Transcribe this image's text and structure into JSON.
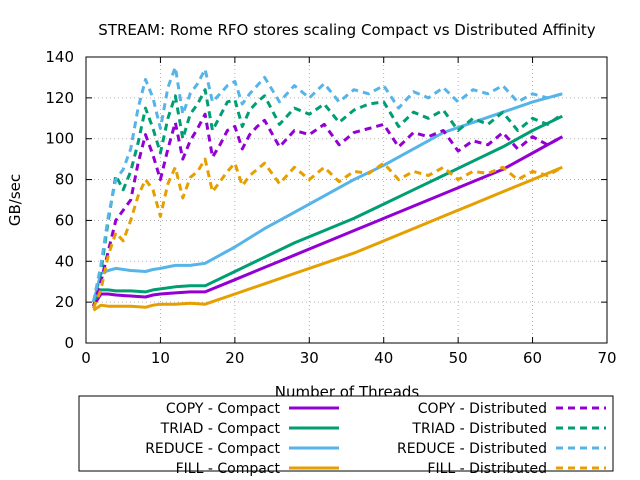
{
  "chart_data": {
    "type": "line",
    "title": "STREAM: Rome RFO stores scaling Compact vs Distributed Affinity",
    "xlabel": "Number of Threads",
    "ylabel": "GB/sec",
    "xlim": [
      0,
      70
    ],
    "ylim": [
      0,
      140
    ],
    "x_ticks": [
      "0",
      "10",
      "20",
      "30",
      "40",
      "50",
      "60",
      "70"
    ],
    "y_ticks": [
      "0",
      "20",
      "40",
      "60",
      "80",
      "100",
      "120",
      "140"
    ],
    "grid": true,
    "legend_position": "bottom",
    "colors": {
      "copy": "#9400d3",
      "triad": "#009e73",
      "reduce": "#56b4e9",
      "fill": "#e69f00"
    },
    "series": [
      {
        "name": "COPY - Compact",
        "color": "#9400d3",
        "dashed": false,
        "x": [
          1,
          2,
          3,
          4,
          6,
          8,
          9,
          10,
          12,
          14,
          16,
          20,
          24,
          28,
          32,
          36,
          40,
          44,
          48,
          52,
          56,
          60,
          64
        ],
        "y": [
          18,
          24,
          24,
          23.5,
          23,
          22.5,
          23.5,
          24,
          24.5,
          25,
          25,
          31,
          37,
          43,
          49,
          55,
          61,
          67,
          73,
          79,
          85,
          93,
          101
        ]
      },
      {
        "name": "TRIAD - Compact",
        "color": "#009e73",
        "dashed": false,
        "x": [
          1,
          2,
          3,
          4,
          6,
          8,
          9,
          10,
          12,
          14,
          16,
          20,
          24,
          28,
          32,
          36,
          40,
          44,
          48,
          52,
          56,
          60,
          64
        ],
        "y": [
          20,
          26,
          26,
          25.5,
          25.5,
          25,
          26,
          26.5,
          27.5,
          28,
          28,
          35,
          42,
          49,
          55,
          61,
          68,
          75,
          82,
          89,
          96,
          104,
          111
        ]
      },
      {
        "name": "REDUCE - Compact",
        "color": "#56b4e9",
        "dashed": false,
        "x": [
          1,
          2,
          3,
          4,
          6,
          8,
          9,
          10,
          12,
          14,
          16,
          20,
          24,
          28,
          32,
          36,
          40,
          44,
          48,
          52,
          56,
          60,
          64
        ],
        "y": [
          20,
          34,
          35.5,
          36.5,
          35.5,
          35,
          36,
          36.5,
          38,
          38,
          39,
          47,
          56,
          64,
          72,
          80,
          87,
          95,
          103,
          108,
          113,
          118,
          122
        ]
      },
      {
        "name": "FILL - Compact",
        "color": "#e69f00",
        "dashed": false,
        "x": [
          1,
          2,
          3,
          4,
          6,
          8,
          9,
          10,
          12,
          14,
          16,
          20,
          24,
          28,
          32,
          36,
          40,
          44,
          48,
          52,
          56,
          60,
          64
        ],
        "y": [
          16,
          18.5,
          18,
          18,
          18,
          17.5,
          18.5,
          19,
          19,
          19.5,
          19,
          24,
          29,
          34,
          39,
          44,
          50,
          56,
          62,
          68,
          74,
          80,
          86
        ]
      },
      {
        "name": "COPY - Distributed",
        "color": "#9400d3",
        "dashed": true,
        "x": [
          1,
          2,
          3,
          4,
          5,
          6,
          7,
          8,
          9,
          10,
          11,
          12,
          13,
          14,
          15,
          16,
          17,
          18,
          19,
          20,
          21,
          22,
          23,
          24,
          26,
          28,
          30,
          32,
          34,
          36,
          38,
          40,
          42,
          44,
          46,
          48,
          50,
          52,
          54,
          56,
          58,
          60,
          62,
          64
        ],
        "y": [
          18,
          30,
          45,
          60,
          65,
          70,
          88,
          102,
          92,
          80,
          95,
          108,
          90,
          99,
          105,
          112,
          91,
          97,
          104,
          106,
          95,
          102,
          106,
          109,
          96,
          104,
          102,
          107,
          97,
          103,
          105,
          107,
          96,
          103,
          101,
          104,
          94,
          99,
          97,
          103,
          95,
          101,
          97,
          101
        ]
      },
      {
        "name": "TRIAD - Distributed",
        "color": "#009e73",
        "dashed": true,
        "x": [
          1,
          2,
          3,
          4,
          5,
          6,
          7,
          8,
          9,
          10,
          11,
          12,
          13,
          14,
          15,
          16,
          17,
          18,
          19,
          20,
          21,
          22,
          23,
          24,
          26,
          28,
          30,
          32,
          34,
          36,
          38,
          40,
          42,
          44,
          46,
          48,
          50,
          52,
          54,
          56,
          58,
          60,
          62,
          64
        ],
        "y": [
          20,
          35,
          60,
          82,
          75,
          84,
          98,
          115,
          105,
          93,
          110,
          121,
          100,
          112,
          117,
          124,
          104,
          111,
          118,
          119,
          106,
          114,
          118,
          121,
          107,
          115,
          112,
          117,
          108,
          114,
          117,
          118,
          106,
          113,
          110,
          114,
          104,
          110,
          107,
          113,
          104,
          110,
          107,
          112
        ]
      },
      {
        "name": "REDUCE - Distributed",
        "color": "#56b4e9",
        "dashed": true,
        "x": [
          1,
          2,
          3,
          4,
          5,
          6,
          7,
          8,
          9,
          10,
          11,
          12,
          13,
          14,
          15,
          16,
          17,
          18,
          19,
          20,
          21,
          22,
          23,
          24,
          26,
          28,
          30,
          32,
          34,
          36,
          38,
          40,
          42,
          44,
          46,
          48,
          50,
          52,
          54,
          56,
          58,
          60,
          62,
          64
        ],
        "y": [
          20,
          38,
          62,
          80,
          85,
          95,
          115,
          129,
          120,
          105,
          125,
          135,
          112,
          122,
          127,
          134,
          118,
          122,
          126,
          128,
          117,
          122,
          126,
          130,
          118,
          126,
          120,
          127,
          118,
          124,
          122,
          126,
          115,
          123,
          120,
          125,
          118,
          124,
          122,
          126,
          118,
          122,
          120,
          122
        ]
      },
      {
        "name": "FILL - Distributed",
        "color": "#e69f00",
        "dashed": true,
        "x": [
          1,
          2,
          3,
          4,
          5,
          6,
          7,
          8,
          9,
          10,
          11,
          12,
          13,
          14,
          15,
          16,
          17,
          18,
          19,
          20,
          21,
          22,
          23,
          24,
          26,
          28,
          30,
          32,
          34,
          36,
          38,
          40,
          42,
          44,
          46,
          48,
          50,
          52,
          54,
          56,
          58,
          60,
          62,
          64
        ],
        "y": [
          17,
          26,
          43,
          54,
          50,
          60,
          72,
          80,
          75,
          62,
          78,
          86,
          71,
          81,
          84,
          90,
          74,
          79,
          84,
          88,
          77,
          82,
          85,
          88,
          78,
          86,
          80,
          86,
          79,
          84,
          83,
          88,
          80,
          84,
          82,
          86,
          80,
          84,
          83,
          86,
          80,
          84,
          82,
          86
        ]
      }
    ]
  }
}
